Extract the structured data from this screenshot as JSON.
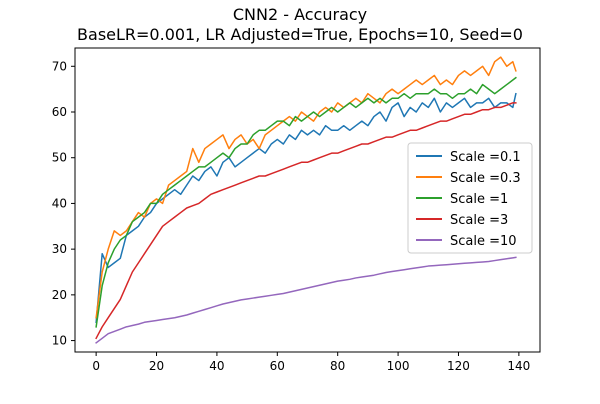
{
  "chart_data": {
    "type": "line",
    "title": "CNN2 - Accuracy",
    "subtitle": "BaseLR=0.001, LR Adjusted=True, Epochs=10, Seed=0",
    "xlabel": "",
    "ylabel": "",
    "xlim": [
      -7,
      147
    ],
    "ylim": [
      7.5,
      74
    ],
    "xticks": [
      0,
      20,
      40,
      60,
      80,
      100,
      120,
      140
    ],
    "yticks": [
      10,
      20,
      30,
      40,
      50,
      60,
      70
    ],
    "grid": false,
    "legend_position": "center-right",
    "series": [
      {
        "name": "Scale =0.1",
        "color": "#1f77b4",
        "x": [
          0,
          2,
          4,
          6,
          8,
          10,
          12,
          14,
          16,
          18,
          20,
          22,
          24,
          26,
          28,
          30,
          32,
          34,
          36,
          38,
          40,
          42,
          44,
          46,
          48,
          50,
          52,
          54,
          56,
          58,
          60,
          62,
          64,
          66,
          68,
          70,
          72,
          74,
          76,
          78,
          80,
          82,
          84,
          86,
          88,
          90,
          92,
          94,
          96,
          98,
          100,
          102,
          104,
          106,
          108,
          110,
          112,
          114,
          116,
          118,
          120,
          122,
          124,
          126,
          128,
          130,
          132,
          134,
          136,
          138,
          139
        ],
        "y": [
          14,
          29,
          26,
          27,
          28,
          33,
          34,
          35,
          37,
          38,
          40,
          41,
          42,
          43,
          42,
          44,
          46,
          45,
          47,
          48,
          46,
          49,
          50,
          48,
          49,
          50,
          51,
          52,
          51,
          53,
          54,
          53,
          55,
          54,
          56,
          55,
          56,
          55,
          57,
          56,
          56,
          57,
          56,
          57,
          58,
          57,
          59,
          60,
          58,
          61,
          62,
          59,
          61,
          60,
          62,
          61,
          63,
          60,
          62,
          61,
          62,
          63,
          61,
          62,
          62,
          63,
          61,
          62,
          62,
          61,
          64
        ]
      },
      {
        "name": "Scale =0.3",
        "color": "#ff7f0e",
        "x": [
          0,
          2,
          4,
          6,
          8,
          10,
          12,
          14,
          16,
          18,
          20,
          22,
          24,
          26,
          28,
          30,
          32,
          34,
          36,
          38,
          40,
          42,
          44,
          46,
          48,
          50,
          52,
          54,
          56,
          58,
          60,
          62,
          64,
          66,
          68,
          70,
          72,
          74,
          76,
          78,
          80,
          82,
          84,
          86,
          88,
          90,
          92,
          94,
          96,
          98,
          100,
          102,
          104,
          106,
          108,
          110,
          112,
          114,
          116,
          118,
          120,
          122,
          124,
          126,
          128,
          130,
          132,
          134,
          136,
          138,
          139
        ],
        "y": [
          15,
          25,
          30,
          34,
          33,
          34,
          36,
          38,
          37,
          40,
          41,
          40,
          44,
          45,
          46,
          47,
          52,
          49,
          52,
          53,
          54,
          55,
          52,
          54,
          55,
          53,
          54,
          52,
          55,
          56,
          57,
          58,
          59,
          58,
          60,
          59,
          58,
          60,
          61,
          60,
          62,
          61,
          62,
          63,
          62,
          64,
          63,
          62,
          64,
          65,
          64,
          65,
          66,
          67,
          66,
          67,
          68,
          66,
          67,
          66,
          68,
          69,
          68,
          69,
          70,
          68,
          71,
          72,
          70,
          71,
          69
        ]
      },
      {
        "name": "Scale =1",
        "color": "#2ca02c",
        "x": [
          0,
          2,
          4,
          6,
          8,
          10,
          12,
          14,
          16,
          18,
          20,
          22,
          24,
          26,
          28,
          30,
          32,
          34,
          36,
          38,
          40,
          42,
          44,
          46,
          48,
          50,
          52,
          54,
          56,
          58,
          60,
          62,
          64,
          66,
          68,
          70,
          72,
          74,
          76,
          78,
          80,
          82,
          84,
          86,
          88,
          90,
          92,
          94,
          96,
          98,
          100,
          102,
          104,
          106,
          108,
          110,
          112,
          114,
          116,
          118,
          120,
          122,
          124,
          126,
          128,
          130,
          132,
          134,
          136,
          138,
          139
        ],
        "y": [
          13,
          22,
          27,
          30,
          32,
          33,
          36,
          37,
          38,
          40,
          40,
          42,
          43,
          44,
          45,
          46,
          47,
          48,
          48,
          49,
          50,
          51,
          50,
          52,
          53,
          53,
          55,
          56,
          56,
          57,
          58,
          58,
          57,
          59,
          58,
          59,
          60,
          59,
          60,
          61,
          60,
          61,
          62,
          61,
          62,
          63,
          62,
          63,
          62,
          63,
          63,
          64,
          63,
          64,
          64,
          64,
          65,
          64,
          64,
          63,
          64,
          64,
          65,
          64,
          66,
          65,
          64,
          65,
          66,
          67,
          67.5
        ]
      },
      {
        "name": "Scale =3",
        "color": "#d62728",
        "x": [
          0,
          2,
          4,
          6,
          8,
          10,
          12,
          14,
          16,
          18,
          20,
          22,
          24,
          26,
          28,
          30,
          32,
          34,
          36,
          38,
          40,
          42,
          44,
          46,
          48,
          50,
          52,
          54,
          56,
          58,
          60,
          62,
          64,
          66,
          68,
          70,
          72,
          74,
          76,
          78,
          80,
          82,
          84,
          86,
          88,
          90,
          92,
          94,
          96,
          98,
          100,
          102,
          104,
          106,
          108,
          110,
          112,
          114,
          116,
          118,
          120,
          122,
          124,
          126,
          128,
          130,
          132,
          134,
          136,
          138,
          139
        ],
        "y": [
          10.5,
          13,
          15,
          17,
          19,
          22,
          25,
          27,
          29,
          31,
          33,
          35,
          36,
          37,
          38,
          39,
          39.5,
          40,
          41,
          42,
          42.5,
          43,
          43.5,
          44,
          44.5,
          45,
          45.5,
          46,
          46,
          46.5,
          47,
          47.5,
          48,
          48.5,
          49,
          49,
          49.5,
          50,
          50.5,
          51,
          51,
          51.5,
          52,
          52.5,
          53,
          53,
          53.5,
          54,
          54.5,
          54.5,
          55,
          55.5,
          56,
          56,
          56.5,
          57,
          57.5,
          58,
          58,
          58.5,
          59,
          59.5,
          59.5,
          60,
          60.5,
          60.5,
          61,
          61,
          61.5,
          62,
          62
        ]
      },
      {
        "name": "Scale =10",
        "color": "#9467bd",
        "x": [
          0,
          2,
          4,
          6,
          8,
          10,
          12,
          14,
          16,
          18,
          20,
          22,
          24,
          26,
          28,
          30,
          32,
          34,
          36,
          38,
          40,
          42,
          44,
          46,
          48,
          50,
          52,
          54,
          56,
          58,
          60,
          62,
          64,
          66,
          68,
          70,
          72,
          74,
          76,
          78,
          80,
          82,
          84,
          86,
          88,
          90,
          92,
          94,
          96,
          98,
          100,
          102,
          104,
          106,
          108,
          110,
          112,
          114,
          116,
          118,
          120,
          122,
          124,
          126,
          128,
          130,
          132,
          134,
          136,
          138,
          139
        ],
        "y": [
          9.5,
          10.5,
          11.5,
          12,
          12.5,
          13,
          13.3,
          13.6,
          14,
          14.2,
          14.4,
          14.6,
          14.8,
          15,
          15.3,
          15.6,
          16,
          16.4,
          16.8,
          17.2,
          17.6,
          18,
          18.3,
          18.6,
          18.9,
          19.1,
          19.3,
          19.5,
          19.7,
          19.9,
          20.1,
          20.3,
          20.6,
          20.9,
          21.2,
          21.5,
          21.8,
          22.1,
          22.4,
          22.7,
          23,
          23.2,
          23.4,
          23.7,
          23.9,
          24.1,
          24.3,
          24.6,
          24.9,
          25.1,
          25.3,
          25.5,
          25.7,
          25.9,
          26.1,
          26.3,
          26.4,
          26.5,
          26.6,
          26.7,
          26.8,
          26.9,
          27,
          27.1,
          27.2,
          27.3,
          27.5,
          27.7,
          27.9,
          28.1,
          28.2
        ]
      }
    ]
  }
}
